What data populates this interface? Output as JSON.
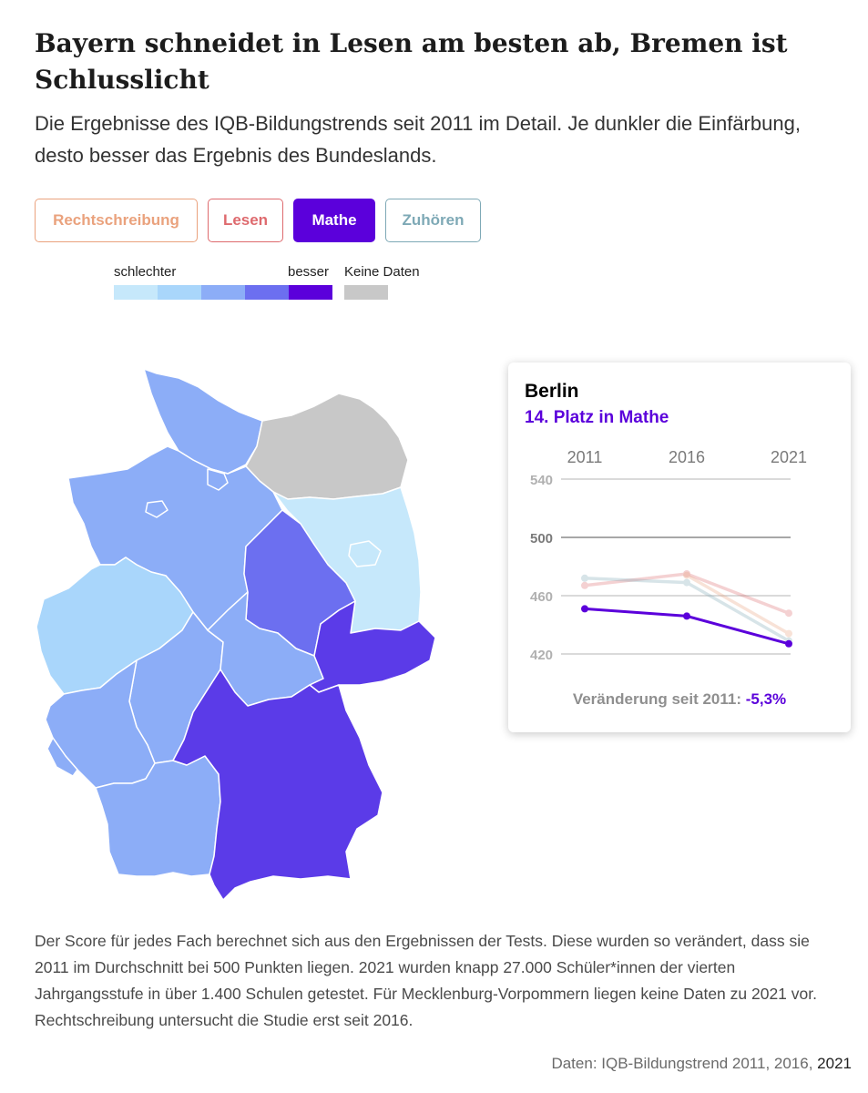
{
  "title": "Bayern schneidet in Lesen am besten ab, Bremen ist Schlusslicht",
  "subtitle": "Die Ergebnisse des IQB-Bildungstrends seit 2011 im Detail. Je dunkler die Einfärbung, desto besser das Ergebnis des Bundeslands.",
  "tabs": [
    {
      "label": "Rechtschreibung",
      "color": "#eaa27d",
      "active": false
    },
    {
      "label": "Lesen",
      "color": "#de6a6e",
      "active": false
    },
    {
      "label": "Mathe",
      "color": "#5b00db",
      "active": true
    },
    {
      "label": "Zuhören",
      "color": "#7ea9b6",
      "active": false
    }
  ],
  "legend": {
    "worse_label": "schlechter",
    "better_label": "besser",
    "nodata_label": "Keine Daten",
    "scale_colors": [
      "#c6e8fb",
      "#a9d6fb",
      "#8cadf7",
      "#6c6ff0",
      "#5b00db"
    ],
    "nodata_color": "#c8c8c8"
  },
  "map": {
    "icons": [
      "germany-map"
    ],
    "states": [
      {
        "name": "Schleswig-Holstein",
        "color": "#8cadf7"
      },
      {
        "name": "Mecklenburg-Vorpommern",
        "color": "#c8c8c8"
      },
      {
        "name": "Niedersachsen",
        "color": "#8cadf7"
      },
      {
        "name": "Bremen",
        "color": "#8cadf7"
      },
      {
        "name": "Hamburg",
        "color": "#8cadf7"
      },
      {
        "name": "Berlin",
        "color": "#c6e8fb"
      },
      {
        "name": "Brandenburg",
        "color": "#c6e8fb"
      },
      {
        "name": "Sachsen-Anhalt",
        "color": "#6c6ff0"
      },
      {
        "name": "Nordrhein-Westfalen",
        "color": "#a9d6fb"
      },
      {
        "name": "Hessen",
        "color": "#8cadf7"
      },
      {
        "name": "Thüringen",
        "color": "#8cadf7"
      },
      {
        "name": "Sachsen",
        "color": "#5b3be8"
      },
      {
        "name": "Rheinland-Pfalz",
        "color": "#8cadf7"
      },
      {
        "name": "Saarland",
        "color": "#8cadf7"
      },
      {
        "name": "Baden-Württemberg",
        "color": "#8cadf7"
      },
      {
        "name": "Bayern",
        "color": "#5b3be8"
      }
    ]
  },
  "card": {
    "state": "Berlin",
    "rank_text": "14. Platz in Mathe",
    "change_label": "Veränderung seit 2011:",
    "change_value": "-5,3%"
  },
  "chart_data": {
    "type": "line",
    "x": [
      "2011",
      "2016",
      "2021"
    ],
    "ylim": [
      420,
      540
    ],
    "y_ticks": [
      "540",
      "500",
      "460",
      "420"
    ],
    "series": [
      {
        "name": "Mathe",
        "values": [
          451,
          446,
          427
        ],
        "color": "#5b00db",
        "opacity": 1
      },
      {
        "name": "Lesen",
        "values": [
          467,
          475,
          448
        ],
        "color": "#de6a6e",
        "opacity": 0.3
      },
      {
        "name": "Rechtschreibung",
        "values": [
          null,
          474,
          434
        ],
        "color": "#eaa27d",
        "opacity": 0.3
      },
      {
        "name": "Zuhören",
        "values": [
          472,
          469,
          429
        ],
        "color": "#7ea9b6",
        "opacity": 0.3
      }
    ]
  },
  "footnote": "Der Score für jedes Fach berechnet sich aus den Ergebnissen der Tests. Diese wurden so verändert, dass sie 2011 im Durchschnitt bei 500 Punkten liegen. 2021 wurden knapp 27.000 Schüler*innen der vierten Jahrgangsstufe in über 1.400 Schulen getestet. Für Mecklenburg-Vorpommern liegen keine Daten zu 2021 vor. Rechtschreibung untersucht die Studie erst seit 2016.",
  "source": {
    "prefix": "Daten: IQB-Bildungstrend 2011, 2016, ",
    "year": "2021"
  }
}
